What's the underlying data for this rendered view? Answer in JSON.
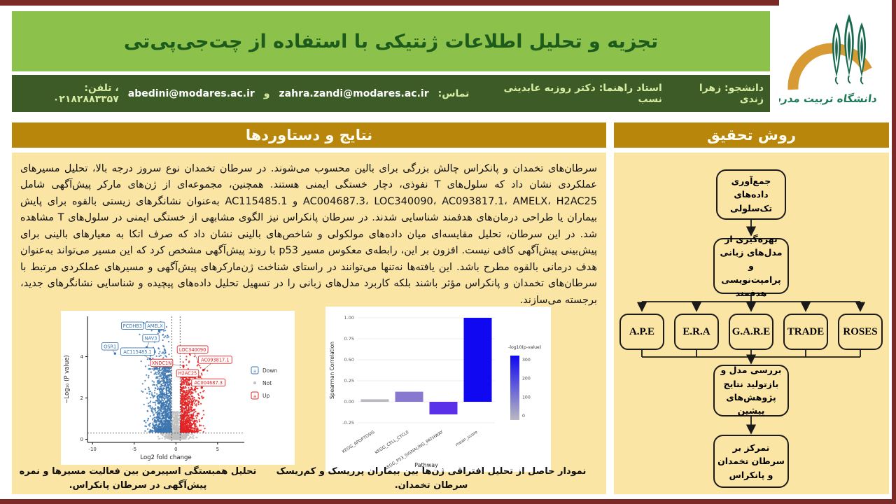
{
  "header": {
    "title": "تجزیه و تحلیل اطلاعات ژنتیکی با استفاده از چت‌جی‌پی‌تی",
    "info": {
      "student": "دانشجو: زهرا زندی",
      "advisor": "استاد راهنما: دکتر روزبه عابدینی نسب",
      "contact_label": "تماس:",
      "email1": "zahra.zandi@modares.ac.ir",
      "and": "و",
      "email2": "abedini@modares.ac.ir",
      "phone": "، تلفن: ۰۲۱۸۲۸۸۳۳۵۷"
    }
  },
  "logo": {
    "university": "دانشگاه تربیت مدرس"
  },
  "left_panel": {
    "header": "نتایج و دستاوردها",
    "paragraph": "سرطان‌های تخمدان و پانکراس چالش بزرگی برای بالین محسوب می‌شوند. در سرطان تخمدان نوع سروز درجه بالا، تحلیل مسیرهای عملکردی نشان داد که سلول‌های T نفوذی، دچار خستگی ایمنی هستند. همچنین، مجموعه‌ای از ژن‌های مارکر پیش‌آگهی شامل AC004687.3، LOC340090، AC093817.1، AMELX، H2AC25 و AC115485.1 به‌عنوان نشانگرهای زیستی بالقوه برای پایش بیماران یا طراحی درمان‌های هدفمند شناسایی شدند. در سرطان پانکراس نیز الگوی مشابهی از خستگی ایمنی در سلول‌های T مشاهده شد. در این سرطان، تحلیل مقایسه‌ای میان داده‌های مولکولی و شاخص‌های بالینی نشان داد که صرف اتکا به معیارهای بالینی برای پیش‌بینی پیش‌آگهی کافی نیست. افزون بر این، رابطه‌ی معکوس مسیر p53 با روند پیش‌آگهی مشخص کرد که این مسیر می‌تواند به‌عنوان هدف درمانی بالقوه مطرح باشد. این یافته‌ها نه‌تنها می‌توانند در راستای شناخت ژن‌مارکرهای پیش‌آگهی و مسیرهای عملکردی مرتبط با سرطان‌های تخمدان و پانکراس مؤثر باشند بلکه کاربرد مدل‌های زبانی را در تسهیل تحلیل داده‌های پیچیده و شناسایی نشانگرهای جدید، برجسته می‌سازند.",
    "volcano_caption": "نمودار حاصل از تحلیل افتراقی ژن‌ها بین بیماران پرریسک و کم‌ریسک سرطان تخمدان.",
    "spearman_caption": "تحلیل همبستگی اسپیرمن بین فعالیت مسیرها و نمره پیش‌آگهی در سرطان پانکراس."
  },
  "right_panel": {
    "header": "روش تحقیق",
    "steps": {
      "s1": "جمع‌آوری داده‌های تک‌سلولی",
      "s2": "بهره‌گیری از مدل‌های زبانی و پرامپت‌نویسی هدفمند",
      "s3": "بررسی مدل و بازتولید نتایج پژوهش‌های پیشین",
      "s4": "تمرکز بر سرطان تخمدان و پانکراس"
    },
    "models": [
      "A.P.E",
      "E.R.A",
      "G.A.R.E",
      "TRADE",
      "ROSES"
    ]
  },
  "colors": {
    "banner_green": "#8cc14c",
    "title_green": "#1d5b1d",
    "info_bar_green": "#3c5b26",
    "gold_header": "#b8860b",
    "cream_panel": "#fbe5a4",
    "maroon_frame": "#7b2a28",
    "down_blue": "#3c76af",
    "up_red": "#e02325",
    "not_gray": "#c0c0c0"
  },
  "chart_data": [
    {
      "type": "scatter",
      "subtype": "volcano",
      "xlabel": "Log2 fold change",
      "ylabel": "−Log₁₀ (P value)",
      "xlim": [
        -10.6,
        8.2
      ],
      "ylim": [
        -0.15,
        5.95
      ],
      "xticks": [
        -10,
        -5,
        0,
        5
      ],
      "yticks": [
        0,
        2,
        4
      ],
      "thresholds": {
        "vlines": [
          -0.5,
          0.5
        ],
        "hline": 0.3
      },
      "legend": [
        {
          "label": "Down",
          "color": "#3c76af",
          "key": "a"
        },
        {
          "label": "Not",
          "color": "#c0c0c0",
          "key": "dot"
        },
        {
          "label": "Up",
          "color": "#e02325",
          "key": "a"
        }
      ],
      "labeled_genes": [
        {
          "name": "PCDHB3",
          "group": "Down",
          "label_x": -5.2,
          "label_y": 5.5,
          "px": -3.9,
          "py": 5.62
        },
        {
          "name": "AMELX",
          "group": "Down",
          "label_x": -2.5,
          "label_y": 5.5,
          "px": -2.0,
          "py": 5.25
        },
        {
          "name": "NAV3",
          "group": "Down",
          "label_x": -3.0,
          "label_y": 4.9,
          "px": -3.5,
          "py": 4.45
        },
        {
          "name": "OSR1",
          "group": "Down",
          "label_x": -7.9,
          "label_y": 4.5,
          "px": -7.3,
          "py": 4.15
        },
        {
          "name": "AC115485.1",
          "group": "Down",
          "label_x": -4.6,
          "label_y": 4.25,
          "px": -3.1,
          "py": 3.9
        },
        {
          "name": "XNDC1N",
          "group": "Up",
          "label_x": -1.7,
          "label_y": 3.7,
          "px": 0.9,
          "py": 3.55
        },
        {
          "name": "LOC340090",
          "group": "Up",
          "label_x": 2.0,
          "label_y": 4.35,
          "px": 2.7,
          "py": 3.75
        },
        {
          "name": "AC093817.1",
          "group": "Up",
          "label_x": 4.7,
          "label_y": 3.85,
          "px": 3.3,
          "py": 3.35
        },
        {
          "name": "H2AC25",
          "group": "Up",
          "label_x": 1.4,
          "label_y": 3.2,
          "px": 2.3,
          "py": 2.95
        },
        {
          "name": "AC004687.3",
          "group": "Up",
          "label_x": 3.9,
          "label_y": 2.75,
          "px": 3.1,
          "py": 2.5
        }
      ],
      "clusters": [
        {
          "color": "#c0c0c0",
          "n": 550,
          "edge": 0,
          "side": 0,
          "spread": 0.45,
          "ymin": 0.0,
          "ymax": 1.35,
          "ypow": 2.4
        },
        {
          "color": "#c0c0c0",
          "n": 300,
          "edge": 0,
          "side": 0,
          "spread": 1.5,
          "ymin": 0.0,
          "ymax": 0.3,
          "ypow": 1.0
        },
        {
          "color": "#3c76af",
          "n": 1150,
          "edge": -0.55,
          "side": -1,
          "spread": 2.1,
          "ymin": 0.35,
          "ymax": 3.6,
          "ypow": 1.7
        },
        {
          "color": "#3c76af",
          "n": 130,
          "edge": -0.8,
          "side": -1,
          "spread": 2.5,
          "ymin": 3.4,
          "ymax": 5.7,
          "ypow": 2.2
        },
        {
          "color": "#e02325",
          "n": 980,
          "edge": 0.55,
          "side": 1,
          "spread": 1.8,
          "ymin": 0.35,
          "ymax": 3.2,
          "ypow": 1.7
        },
        {
          "color": "#e02325",
          "n": 55,
          "edge": 0.8,
          "side": 1,
          "spread": 2.2,
          "ymin": 3.0,
          "ymax": 4.2,
          "ypow": 2.0
        }
      ]
    },
    {
      "type": "bar",
      "categories": [
        "KEGG_APOPTOSIS",
        "KEGG_CELL_CYCLE",
        "KEGG_P53_SIGNALING_PATHWAY",
        "mean_score"
      ],
      "values": [
        0.03,
        0.12,
        -0.15,
        1.0
      ],
      "bar_colors": [
        "#b9b9c0",
        "#8878d0",
        "#5a31e8",
        "#1008f0"
      ],
      "xlabel": "Pathway",
      "ylabel": "Spearman Correlation",
      "yticks": [
        -0.25,
        0.0,
        0.25,
        0.5,
        0.75,
        1.0
      ],
      "ylim": [
        -0.3,
        1.05
      ],
      "legend": {
        "title": "-log10(p-value)",
        "ticks": [
          300,
          200,
          100,
          0
        ],
        "top_color": "#1008f0",
        "bottom_color": "#b9b9c0"
      }
    }
  ]
}
